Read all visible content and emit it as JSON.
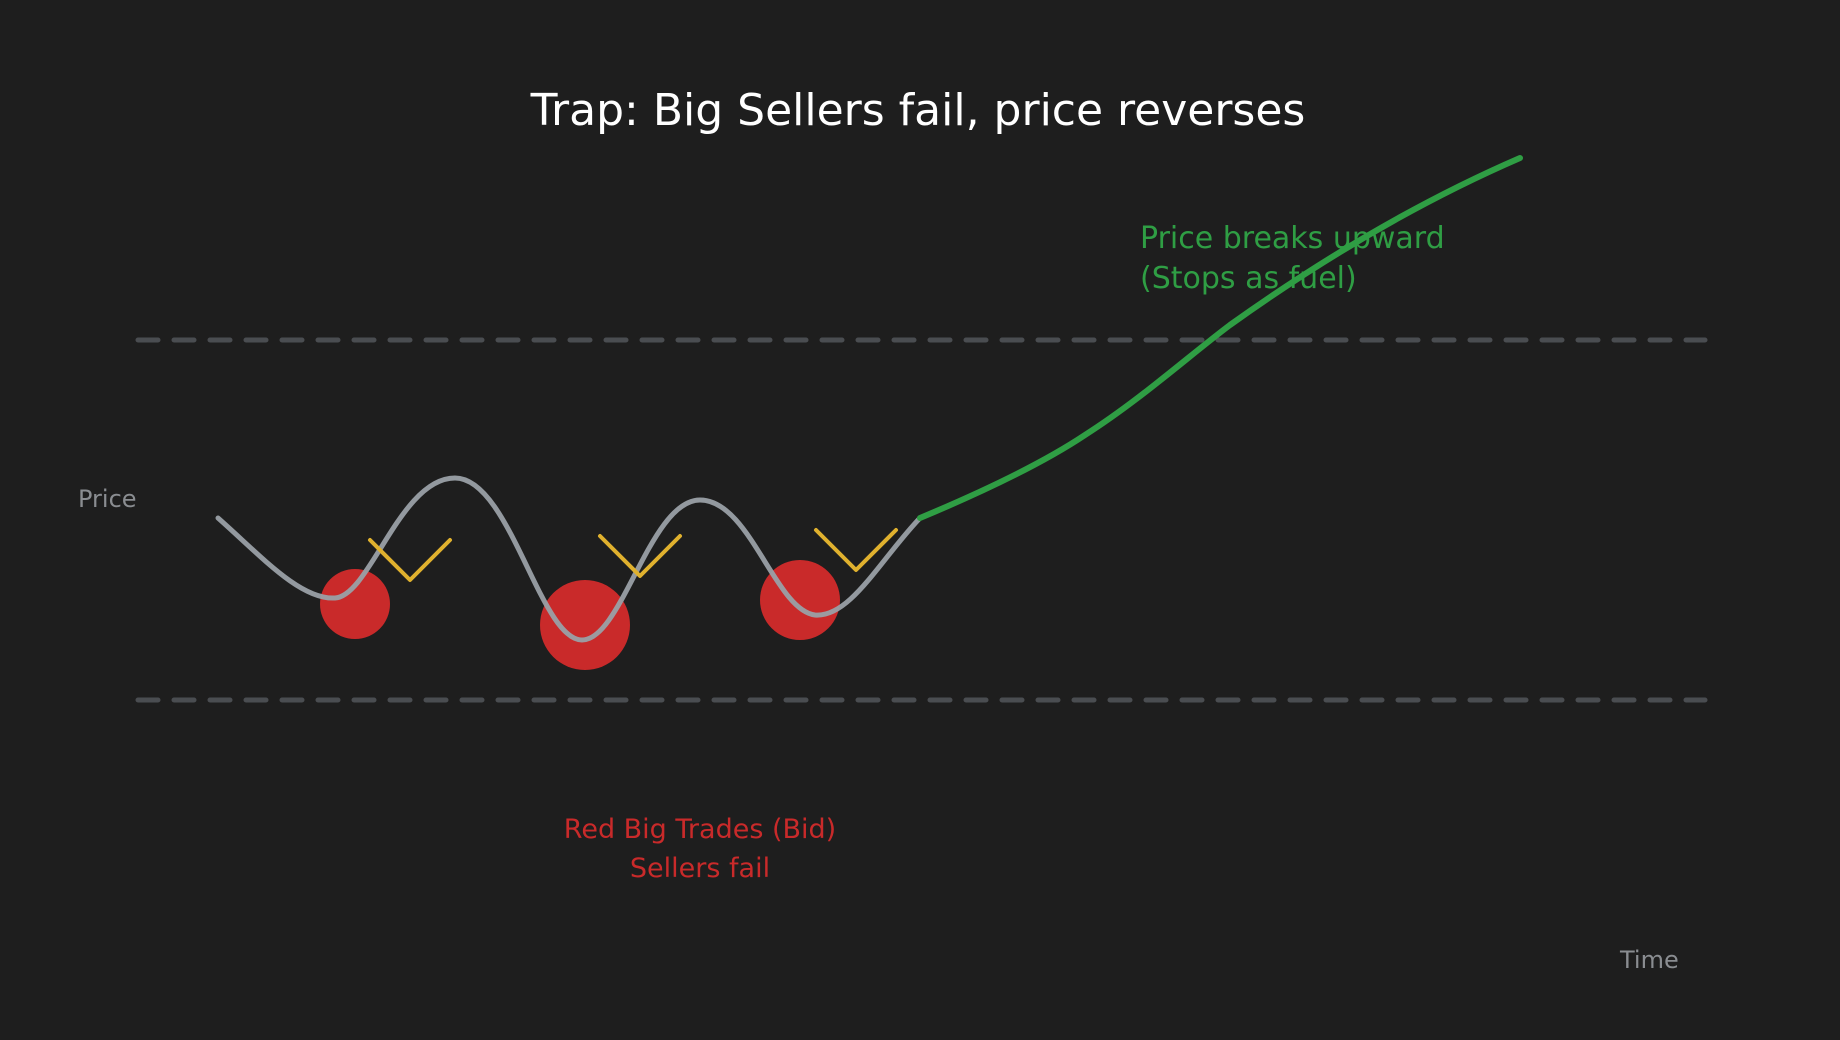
{
  "title": "Trap: Big Sellers fail, price reverses",
  "axes": {
    "y_label": "Price",
    "x_label": "Time"
  },
  "breakout_note": {
    "line1": "Price breaks upward",
    "line2": "(Stops as fuel)"
  },
  "sellers_note": {
    "line1": "Red Big Trades (Bid)",
    "line2": "Sellers fail"
  },
  "colors": {
    "background": "#1e1e1e",
    "range_lines": "#4a4d51",
    "price_path": "#9aa0a6",
    "breakout_path": "#2f9e44",
    "big_trades": "#c92a2a",
    "rejection_marks": "#e0b12e",
    "title": "#ffffff",
    "axis_text": "#8a8d91"
  }
}
